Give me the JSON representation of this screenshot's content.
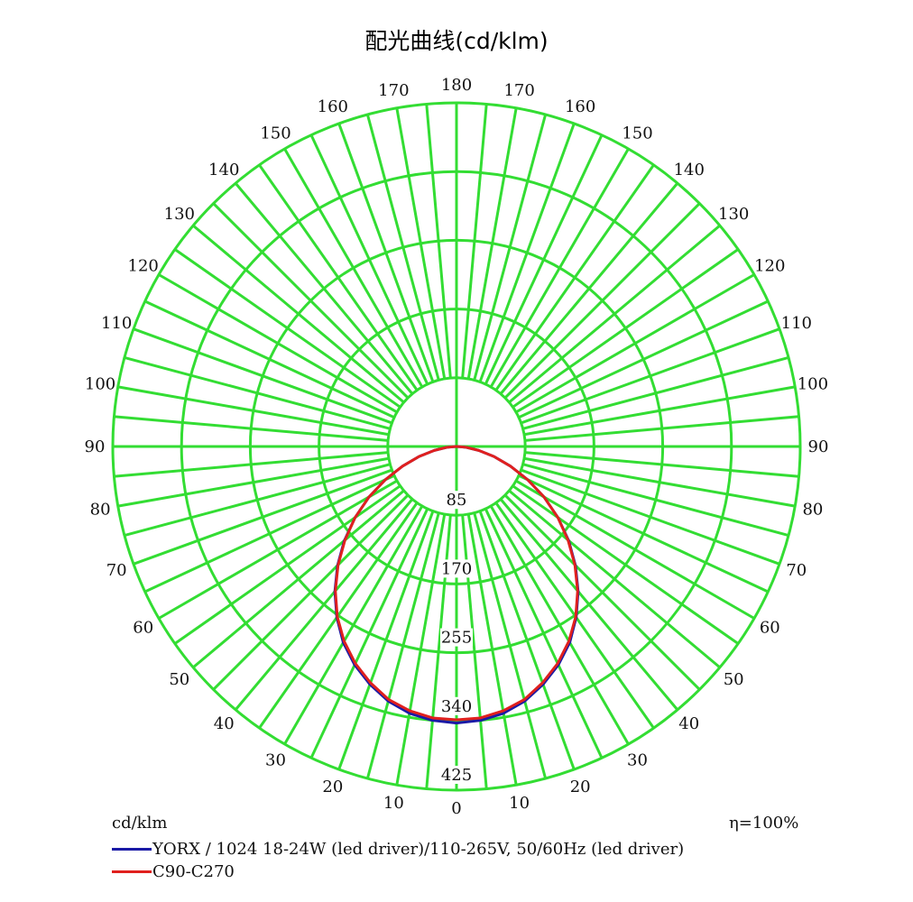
{
  "title": "配光曲线(cd/klm)",
  "unit": "cd/klm",
  "efficiency": "η=100%",
  "legend": [
    {
      "label": "YORX / 1024 18-24W (led driver)/110-265V, 50/60Hz (led driver)",
      "color": "#1a1aa6"
    },
    {
      "label": "C90-C270",
      "color": "#e0201e"
    }
  ],
  "colors": {
    "grid": "#33dd33",
    "background": "#ffffff",
    "text": "#111111"
  },
  "chart_data": {
    "type": "polar",
    "angle_unit": "degrees",
    "angle_ticks": [
      0,
      10,
      20,
      30,
      40,
      50,
      60,
      70,
      80,
      90,
      100,
      110,
      120,
      130,
      140,
      150,
      160,
      170,
      180
    ],
    "radial_ticks": [
      85,
      170,
      255,
      340,
      425
    ],
    "rmax": 425,
    "inner_ring": 85,
    "series": [
      {
        "name": "YORX / 1024 18-24W (led driver)/110-265V, 50/60Hz (led driver)",
        "color": "#1a1aa6",
        "gamma": [
          0,
          5,
          10,
          15,
          20,
          25,
          30,
          35,
          40,
          45,
          50,
          55,
          60,
          65,
          70,
          75,
          80,
          85,
          90
        ],
        "intensity": [
          342,
          340,
          335,
          326,
          313,
          298,
          280,
          258,
          234,
          208,
          181,
          153,
          125,
          97,
          71,
          48,
          28,
          12,
          0
        ]
      },
      {
        "name": "C90-C270",
        "color": "#e0201e",
        "gamma": [
          0,
          5,
          10,
          15,
          20,
          25,
          30,
          35,
          40,
          45,
          50,
          55,
          60,
          65,
          70,
          75,
          80,
          85,
          90
        ],
        "intensity": [
          338,
          337,
          332,
          324,
          311,
          296,
          278,
          257,
          233,
          207,
          180,
          153,
          125,
          97,
          71,
          48,
          28,
          12,
          0
        ]
      }
    ]
  }
}
